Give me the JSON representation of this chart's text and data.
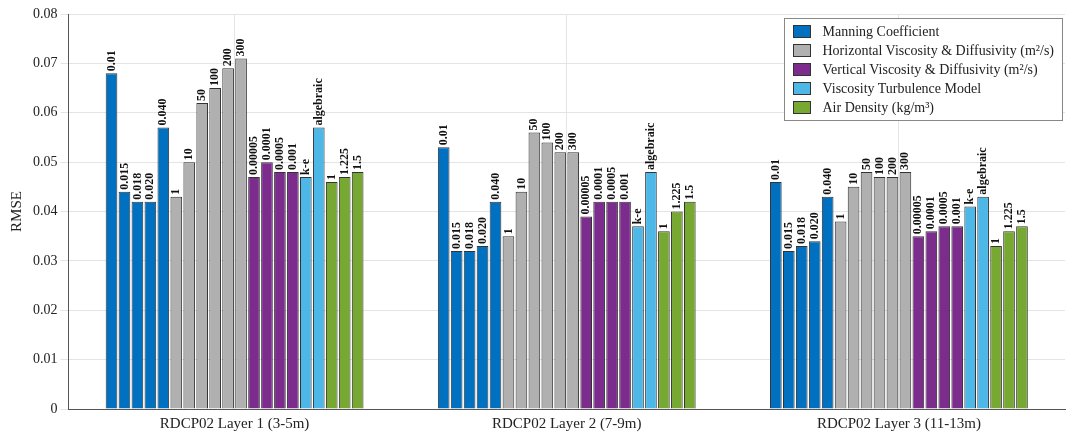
{
  "chart_data": {
    "type": "bar",
    "ylabel": "RMSE",
    "categories": [
      "RDCP02 Layer 1 (3-5m)",
      "RDCP02 Layer 2 (7-9m)",
      "RDCP02 Layer 3 (11-13m)"
    ],
    "ylim": [
      0,
      0.08
    ],
    "yticks": [
      0,
      0.01,
      0.02,
      0.03,
      0.04,
      0.05,
      0.06,
      0.07,
      0.08
    ],
    "grid": true,
    "legend": "top right",
    "series": [
      {
        "name": "Manning Coefficient",
        "color": "#0070c0",
        "values": [
          0.068,
          0.053,
          0.046
        ]
      },
      {
        "color": "#0070c0",
        "values": [
          0.044,
          0.032,
          0.032
        ]
      },
      {
        "color": "#0070c0",
        "values": [
          0.042,
          0.032,
          0.033
        ]
      },
      {
        "color": "#0070c0",
        "values": [
          0.042,
          0.033,
          0.034
        ]
      },
      {
        "color": "#0070c0",
        "values": [
          0.057,
          0.042,
          0.043
        ]
      },
      {
        "name": "Horizontal Viscosity & Diffusivity (m²/s)",
        "color": "#b0b0b0",
        "values": [
          0.043,
          0.035,
          0.038
        ]
      },
      {
        "color": "#b0b0b0",
        "values": [
          0.05,
          0.044,
          0.045
        ]
      },
      {
        "color": "#b0b0b0",
        "values": [
          0.062,
          0.056,
          0.048
        ]
      },
      {
        "color": "#b0b0b0",
        "values": [
          0.065,
          0.054,
          0.047
        ]
      },
      {
        "color": "#b0b0b0",
        "values": [
          0.069,
          0.052,
          0.047
        ]
      },
      {
        "color": "#b0b0b0",
        "values": [
          0.071,
          0.052,
          0.048
        ]
      },
      {
        "name": "Vertical Viscosity & Diffusivity (m²/s)",
        "color": "#7b2c8c",
        "values": [
          0.047,
          0.039,
          0.035
        ]
      },
      {
        "color": "#7b2c8c",
        "values": [
          0.05,
          0.042,
          0.036
        ]
      },
      {
        "color": "#7b2c8c",
        "values": [
          0.048,
          0.042,
          0.037
        ]
      },
      {
        "color": "#7b2c8c",
        "values": [
          0.048,
          0.042,
          0.037
        ]
      },
      {
        "name": "Viscosity Turbulence Model",
        "color": "#4db8e8",
        "values": [
          0.047,
          0.037,
          0.041
        ]
      },
      {
        "color": "#4db8e8",
        "values": [
          0.057,
          0.048,
          0.043
        ]
      },
      {
        "name": "Air Density (kg/m³)",
        "color": "#77a832",
        "values": [
          0.046,
          0.036,
          0.033
        ]
      },
      {
        "color": "#77a832",
        "values": [
          0.047,
          0.04,
          0.036
        ]
      },
      {
        "color": "#77a832",
        "values": [
          0.048,
          0.042,
          0.037
        ]
      }
    ],
    "annotations": [
      "0.01",
      "0.01",
      "0.01",
      "0.015",
      "0.015",
      "0.015",
      "0.018",
      "0.018",
      "0.018",
      "0.020",
      "0.020",
      "0.020",
      "0.040",
      "0.040",
      "0.040",
      "1",
      "1",
      "1",
      "10",
      "10",
      "10",
      "50",
      "50",
      "50",
      "100",
      "100",
      "100",
      "200",
      "200",
      "200",
      "300",
      "300",
      "300",
      "0.00005",
      "0.00005",
      "0.00005",
      "0.0001",
      "0.0001",
      "0.0001",
      "0.0005",
      "0.0005",
      "0.0005",
      "0.001",
      "0.001",
      "0.001",
      "k-e",
      "k-e",
      "k-e",
      "algebraic",
      "algebraic",
      "algebraic",
      "1",
      "1",
      "1",
      "1.225",
      "1.225",
      "1.225",
      "1.5",
      "1.5",
      "1.5"
    ]
  }
}
